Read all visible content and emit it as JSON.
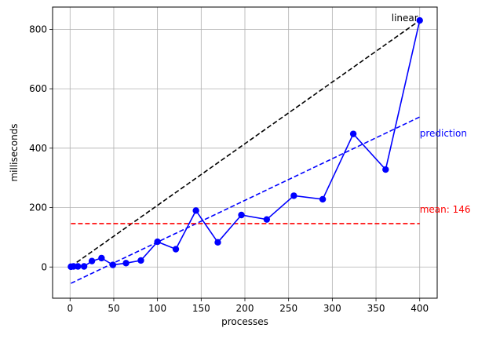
{
  "chart_data": {
    "type": "line",
    "xlabel": "processes",
    "ylabel": "milliseconds",
    "xlim": [
      -20,
      420
    ],
    "ylim": [
      -105,
      875
    ],
    "grid": true,
    "xticks": [
      0,
      50,
      100,
      150,
      200,
      250,
      300,
      350,
      400
    ],
    "yticks": [
      0,
      200,
      400,
      600,
      800
    ],
    "series": [
      {
        "name": "",
        "style": "solid-with-markers",
        "color": "#0000ff",
        "x": [
          1,
          4,
          9,
          16,
          25,
          36,
          49,
          64,
          81,
          100,
          121,
          144,
          169,
          196,
          225,
          256,
          289,
          324,
          361,
          400
        ],
        "y": [
          1,
          2,
          2,
          2,
          20,
          30,
          7,
          13,
          22,
          85,
          60,
          190,
          83,
          175,
          160,
          240,
          228,
          448,
          328,
          830
        ]
      }
    ],
    "reference_lines": [
      {
        "name": "linear",
        "style": "dashed",
        "color": "#000000",
        "x": [
          1,
          400
        ],
        "y": [
          2,
          830
        ],
        "label": "linear"
      },
      {
        "name": "prediction",
        "style": "dashed",
        "color": "#0000ff",
        "x": [
          1,
          400
        ],
        "y": [
          -55,
          505
        ],
        "label": "prediction"
      },
      {
        "name": "mean",
        "style": "dashed",
        "color": "#ff0000",
        "x": [
          1,
          400
        ],
        "y": [
          146,
          146
        ],
        "label": "mean: 146"
      }
    ]
  }
}
